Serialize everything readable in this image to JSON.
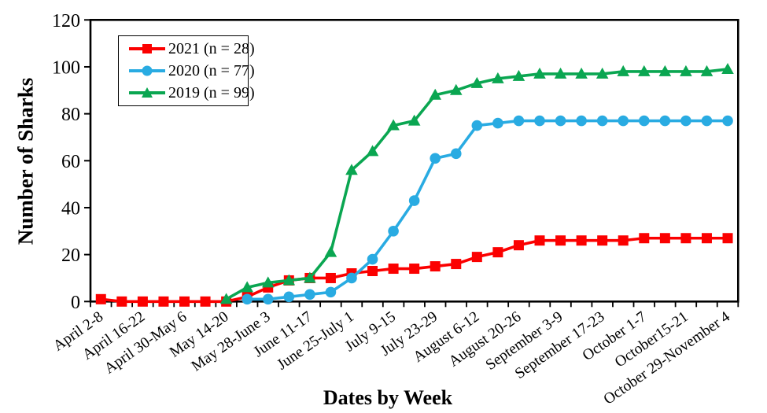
{
  "chart_data": {
    "type": "line",
    "title": "",
    "xlabel": "Dates by Week",
    "ylabel": "Number of Sharks",
    "ylim": [
      0,
      120
    ],
    "y_ticks": [
      0,
      20,
      40,
      60,
      80,
      100,
      120
    ],
    "n_weeks": 31,
    "x_tick_labels_every_other_week": true,
    "x_tick_labels": [
      "April 2-8",
      "April 16-22",
      "April 30-May 6",
      "May 14-20",
      "May 28-June 3",
      "June 11-17",
      "June 25-July 1",
      "July 9-15",
      "July 23-29",
      "August 6-12",
      "August 20-26",
      "September 3-9",
      "September 17-23",
      "October 1-7",
      "October15-21",
      "October 29-November 4"
    ],
    "grid": false,
    "legend_position": "top-left-inside",
    "series": [
      {
        "name": "2021 (n = 28)",
        "year": "2021",
        "n": 28,
        "color": "#fb0000",
        "marker": "square",
        "values": [
          1,
          0,
          0,
          0,
          0,
          0,
          0,
          2,
          6,
          9,
          10,
          10,
          12,
          13,
          14,
          14,
          15,
          16,
          19,
          21,
          24,
          26,
          26,
          26,
          26,
          26,
          27,
          27,
          27,
          27,
          27
        ]
      },
      {
        "name": "2020 (n = 77)",
        "year": "2020",
        "n": 77,
        "color": "#29abe2",
        "marker": "circle",
        "values": [
          null,
          null,
          null,
          null,
          null,
          null,
          null,
          1,
          1,
          2,
          3,
          4,
          10,
          18,
          30,
          43,
          61,
          63,
          75,
          76,
          77,
          77,
          77,
          77,
          77,
          77,
          77,
          77,
          77,
          77,
          77
        ]
      },
      {
        "name": "2019 (n = 99)",
        "year": "2019",
        "n": 99,
        "color": "#0aa651",
        "marker": "triangle",
        "values": [
          null,
          null,
          null,
          null,
          null,
          null,
          1,
          6,
          8,
          9,
          10,
          21,
          56,
          64,
          75,
          77,
          88,
          90,
          93,
          95,
          96,
          97,
          97,
          97,
          97,
          98,
          98,
          98,
          98,
          98,
          99
        ]
      }
    ]
  }
}
